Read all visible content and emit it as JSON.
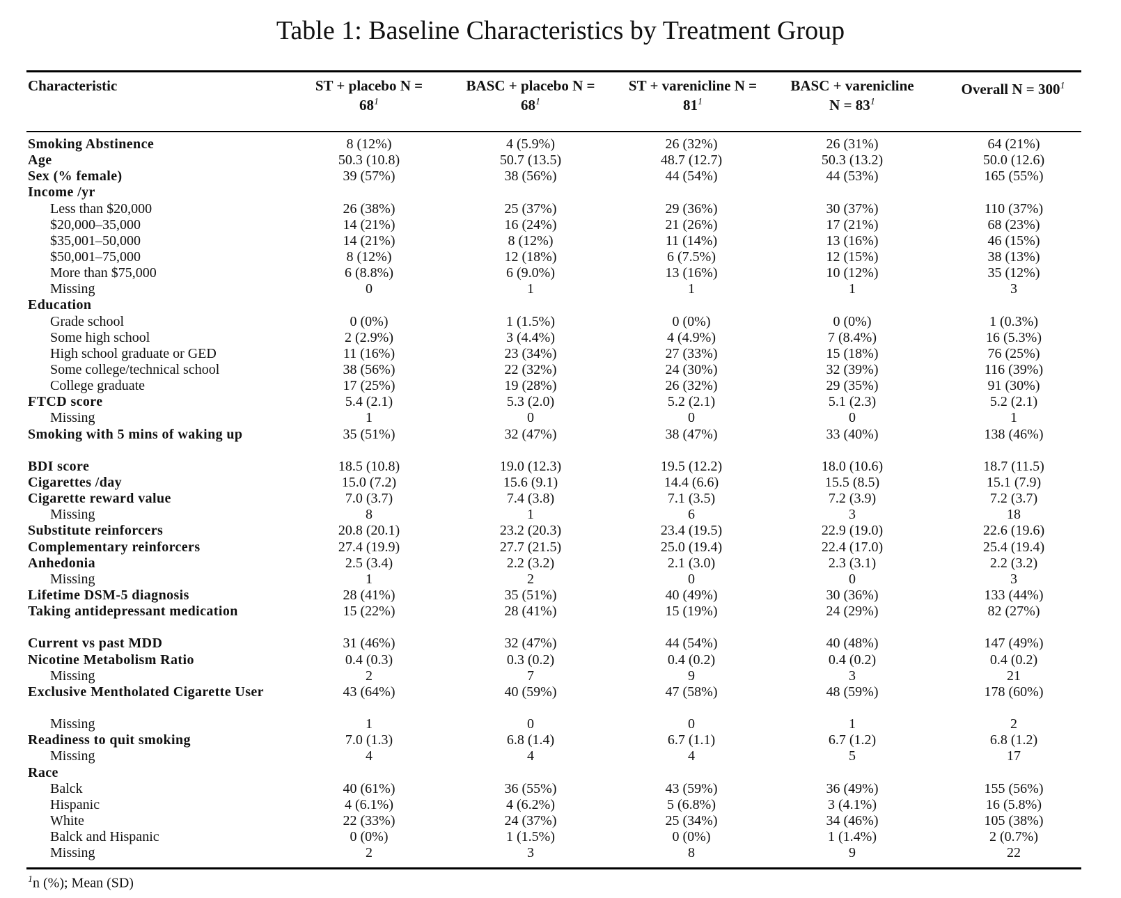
{
  "title": "Table 1: Baseline Characteristics by Treatment Group",
  "columns": [
    {
      "label": "Characteristic",
      "footnote": ""
    },
    {
      "label": "ST + placebo N = 68",
      "footnote": "1"
    },
    {
      "label": "BASC + placebo N = 68",
      "footnote": "1"
    },
    {
      "label": "ST + varenicline N = 81",
      "footnote": "1"
    },
    {
      "label": "BASC + varenicline N = 83",
      "footnote": "1"
    },
    {
      "label": "Overall N = 300",
      "footnote": "1"
    }
  ],
  "rows": [
    {
      "label": "Smoking Abstinence",
      "level": 0,
      "values": [
        "8 (12%)",
        "4 (5.9%)",
        "26 (32%)",
        "26 (31%)",
        "64 (21%)"
      ]
    },
    {
      "label": "Age",
      "level": 0,
      "values": [
        "50.3 (10.8)",
        "50.7 (13.5)",
        "48.7 (12.7)",
        "50.3 (13.2)",
        "50.0 (12.6)"
      ]
    },
    {
      "label": "Sex (% female)",
      "level": 0,
      "values": [
        "39 (57%)",
        "38 (56%)",
        "44 (54%)",
        "44 (53%)",
        "165 (55%)"
      ]
    },
    {
      "label": "Income /yr",
      "level": 0,
      "values": [
        "",
        "",
        "",
        "",
        ""
      ]
    },
    {
      "label": "Less than $20,000",
      "level": 1,
      "values": [
        "26 (38%)",
        "25 (37%)",
        "29 (36%)",
        "30 (37%)",
        "110 (37%)"
      ]
    },
    {
      "label": "$20,000–35,000",
      "level": 1,
      "values": [
        "14 (21%)",
        "16 (24%)",
        "21 (26%)",
        "17 (21%)",
        "68 (23%)"
      ]
    },
    {
      "label": "$35,001–50,000",
      "level": 1,
      "values": [
        "14 (21%)",
        "8 (12%)",
        "11 (14%)",
        "13 (16%)",
        "46 (15%)"
      ]
    },
    {
      "label": "$50,001–75,000",
      "level": 1,
      "values": [
        "8 (12%)",
        "12 (18%)",
        "6 (7.5%)",
        "12 (15%)",
        "38 (13%)"
      ]
    },
    {
      "label": "More than $75,000",
      "level": 1,
      "values": [
        "6 (8.8%)",
        "6 (9.0%)",
        "13 (16%)",
        "10 (12%)",
        "35 (12%)"
      ]
    },
    {
      "label": "Missing",
      "level": 1,
      "values": [
        "0",
        "1",
        "1",
        "1",
        "3"
      ]
    },
    {
      "label": "Education",
      "level": 0,
      "values": [
        "",
        "",
        "",
        "",
        ""
      ]
    },
    {
      "label": "Grade school",
      "level": 1,
      "values": [
        "0 (0%)",
        "1 (1.5%)",
        "0 (0%)",
        "0 (0%)",
        "1 (0.3%)"
      ]
    },
    {
      "label": "Some high school",
      "level": 1,
      "values": [
        "2 (2.9%)",
        "3 (4.4%)",
        "4 (4.9%)",
        "7 (8.4%)",
        "16 (5.3%)"
      ]
    },
    {
      "label": "High school graduate or GED",
      "level": 1,
      "values": [
        "11 (16%)",
        "23 (34%)",
        "27 (33%)",
        "15 (18%)",
        "76 (25%)"
      ]
    },
    {
      "label": "Some college/technical school",
      "level": 1,
      "values": [
        "38 (56%)",
        "22 (32%)",
        "24 (30%)",
        "32 (39%)",
        "116 (39%)"
      ]
    },
    {
      "label": "College graduate",
      "level": 1,
      "values": [
        "17 (25%)",
        "19 (28%)",
        "26 (32%)",
        "29 (35%)",
        "91 (30%)"
      ]
    },
    {
      "label": "FTCD score",
      "level": 0,
      "values": [
        "5.4 (2.1)",
        "5.3 (2.0)",
        "5.2 (2.1)",
        "5.1 (2.3)",
        "5.2 (2.1)"
      ]
    },
    {
      "label": "Missing",
      "level": 1,
      "values": [
        "1",
        "0",
        "0",
        "0",
        "1"
      ]
    },
    {
      "label": "Smoking with 5 mins of waking up",
      "level": 0,
      "tall": true,
      "values": [
        "35 (51%)",
        "32 (47%)",
        "38 (47%)",
        "33 (40%)",
        "138 (46%)"
      ]
    },
    {
      "label": "BDI score",
      "level": 0,
      "values": [
        "18.5 (10.8)",
        "19.0 (12.3)",
        "19.5 (12.2)",
        "18.0 (10.6)",
        "18.7 (11.5)"
      ]
    },
    {
      "label": "Cigarettes /day",
      "level": 0,
      "values": [
        "15.0 (7.2)",
        "15.6 (9.1)",
        "14.4 (6.6)",
        "15.5 (8.5)",
        "15.1 (7.9)"
      ]
    },
    {
      "label": "Cigarette reward value",
      "level": 0,
      "values": [
        "7.0 (3.7)",
        "7.4 (3.8)",
        "7.1 (3.5)",
        "7.2 (3.9)",
        "7.2 (3.7)"
      ]
    },
    {
      "label": "Missing",
      "level": 1,
      "values": [
        "8",
        "1",
        "6",
        "3",
        "18"
      ]
    },
    {
      "label": "Substitute reinforcers",
      "level": 0,
      "values": [
        "20.8 (20.1)",
        "23.2 (20.3)",
        "23.4 (19.5)",
        "22.9 (19.0)",
        "22.6 (19.6)"
      ]
    },
    {
      "label": "Complementary reinforcers",
      "level": 0,
      "values": [
        "27.4 (19.9)",
        "27.7 (21.5)",
        "25.0 (19.4)",
        "22.4 (17.0)",
        "25.4 (19.4)"
      ]
    },
    {
      "label": "Anhedonia",
      "level": 0,
      "values": [
        "2.5 (3.4)",
        "2.2 (3.2)",
        "2.1 (3.0)",
        "2.3 (3.1)",
        "2.2 (3.2)"
      ]
    },
    {
      "label": "Missing",
      "level": 1,
      "values": [
        "1",
        "2",
        "0",
        "0",
        "3"
      ]
    },
    {
      "label": "Lifetime DSM-5 diagnosis",
      "level": 0,
      "values": [
        "28 (41%)",
        "35 (51%)",
        "40 (49%)",
        "30 (36%)",
        "133 (44%)"
      ]
    },
    {
      "label": "Taking antidepressant medication",
      "level": 0,
      "tall": true,
      "values": [
        "15 (22%)",
        "28 (41%)",
        "15 (19%)",
        "24 (29%)",
        "82 (27%)"
      ]
    },
    {
      "label": "Current vs past MDD",
      "level": 0,
      "values": [
        "31 (46%)",
        "32 (47%)",
        "44 (54%)",
        "40 (48%)",
        "147 (49%)"
      ]
    },
    {
      "label": "Nicotine Metabolism Ratio",
      "level": 0,
      "values": [
        "0.4 (0.3)",
        "0.3 (0.2)",
        "0.4 (0.2)",
        "0.4 (0.2)",
        "0.4 (0.2)"
      ]
    },
    {
      "label": "Missing",
      "level": 1,
      "values": [
        "2",
        "7",
        "9",
        "3",
        "21"
      ]
    },
    {
      "label": "Exclusive Mentholated Cigarette User",
      "level": 0,
      "tall": true,
      "values": [
        "43 (64%)",
        "40 (59%)",
        "47 (58%)",
        "48 (59%)",
        "178 (60%)"
      ]
    },
    {
      "label": "Missing",
      "level": 1,
      "values": [
        "1",
        "0",
        "0",
        "1",
        "2"
      ]
    },
    {
      "label": "Readiness to quit smoking",
      "level": 0,
      "values": [
        "7.0 (1.3)",
        "6.8 (1.4)",
        "6.7 (1.1)",
        "6.7 (1.2)",
        "6.8 (1.2)"
      ]
    },
    {
      "label": "Missing",
      "level": 1,
      "values": [
        "4",
        "4",
        "4",
        "5",
        "17"
      ]
    },
    {
      "label": "Race",
      "level": 0,
      "values": [
        "",
        "",
        "",
        "",
        ""
      ]
    },
    {
      "label": "Balck",
      "level": 1,
      "values": [
        "40 (61%)",
        "36 (55%)",
        "43 (59%)",
        "36 (49%)",
        "155 (56%)"
      ]
    },
    {
      "label": "Hispanic",
      "level": 1,
      "values": [
        "4 (6.1%)",
        "4 (6.2%)",
        "5 (6.8%)",
        "3 (4.1%)",
        "16 (5.8%)"
      ]
    },
    {
      "label": "White",
      "level": 1,
      "values": [
        "22 (33%)",
        "24 (37%)",
        "25 (34%)",
        "34 (46%)",
        "105 (38%)"
      ]
    },
    {
      "label": "Balck and Hispanic",
      "level": 1,
      "values": [
        "0 (0%)",
        "1 (1.5%)",
        "0 (0%)",
        "1 (1.4%)",
        "2 (0.7%)"
      ]
    },
    {
      "label": "Missing",
      "level": 1,
      "values": [
        "2",
        "3",
        "8",
        "9",
        "22"
      ]
    }
  ],
  "footnote": {
    "mark": "1",
    "text": "n (%); Mean (SD)"
  }
}
